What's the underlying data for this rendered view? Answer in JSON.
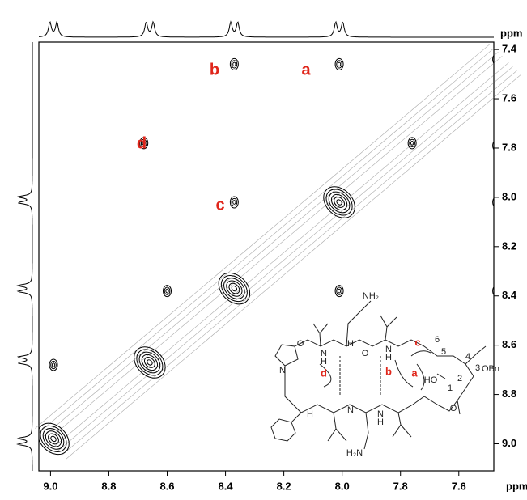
{
  "chart_data": {
    "type": "scatter",
    "x": [
      8.37,
      8.01,
      8.68,
      8.37,
      7.47,
      8.01,
      7.47,
      8.6,
      8.99,
      7.47,
      7.47,
      7.76,
      8.01,
      8.37,
      8.66,
      8.99
    ],
    "values": [
      7.46,
      7.46,
      7.78,
      8.02,
      8.02,
      8.38,
      8.38,
      8.38,
      8.68,
      7.79,
      7.44,
      7.78,
      8.02,
      8.37,
      8.67,
      8.98
    ],
    "color": "#000000",
    "xlim": [
      9.04,
      7.48
    ],
    "ylim": [
      7.37,
      9.11
    ],
    "xticks": [
      {
        "value": 9,
        "label": "9.0"
      },
      8.8,
      8.6,
      8.4,
      8.2,
      {
        "value": 8,
        "label": "8.0"
      },
      7.8,
      7.6
    ],
    "yticks": [
      7.4,
      7.6,
      7.8,
      {
        "value": 8,
        "label": "8.0"
      },
      8.2,
      8.4,
      8.6,
      8.8,
      {
        "value": 9,
        "label": "9.0"
      }
    ],
    "x_label": "ppm",
    "y_label": "ppm",
    "annotations": [
      "b",
      "a",
      "d",
      "c"
    ],
    "annotation_color": "#e0261b"
  },
  "structure": {
    "labels": [
      "NH₂",
      "H₂N",
      "OBn",
      "HO",
      "N",
      "H",
      "O",
      "N",
      "H",
      "H",
      "N",
      "N",
      "H",
      "O",
      "N",
      "H",
      "O",
      "1",
      "2",
      "3",
      "4",
      "5",
      "6",
      "a",
      "b",
      "c",
      "d"
    ]
  }
}
